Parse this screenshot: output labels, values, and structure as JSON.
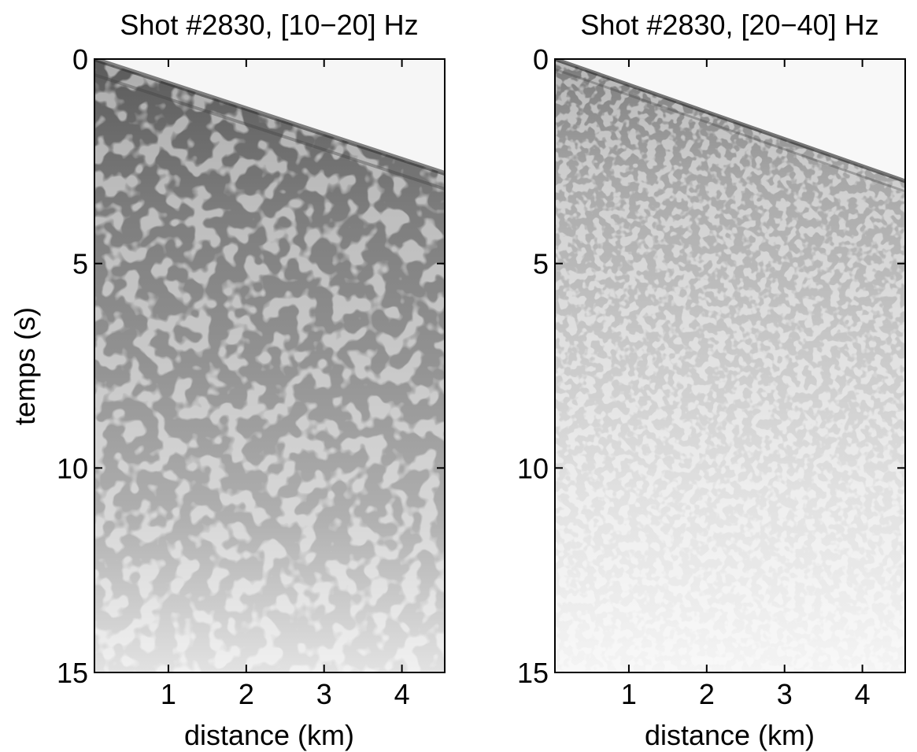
{
  "chart_data": [
    {
      "type": "heatmap",
      "title": "Shot #2830, [10−20] Hz",
      "xlabel": "distance (km)",
      "ylabel": "temps (s)",
      "xlim": [
        0.05,
        4.55
      ],
      "ylim": [
        0,
        15
      ],
      "y_reversed": true,
      "xticks": [
        1,
        2,
        3,
        4
      ],
      "yticks": [
        0,
        5,
        10,
        15
      ],
      "colormap": "grayscale",
      "first_arrival": {
        "distance_km": [
          0.05,
          4.55
        ],
        "time_s": [
          0.0,
          2.8
        ]
      },
      "energy_profile": "dark, dense coda decaying slowly to about 15 s"
    },
    {
      "type": "heatmap",
      "title": "Shot #2830, [20−40] Hz",
      "xlabel": "distance (km)",
      "ylabel": "",
      "xlim": [
        0.05,
        4.55
      ],
      "ylim": [
        0,
        15
      ],
      "y_reversed": true,
      "xticks": [
        1,
        2,
        3,
        4
      ],
      "yticks": [
        0,
        5,
        10,
        15
      ],
      "colormap": "grayscale",
      "first_arrival": {
        "distance_km": [
          0.05,
          4.55
        ],
        "time_s": [
          0.0,
          3.0
        ]
      },
      "energy_profile": "lighter coda decaying faster, near background after about 8 s"
    }
  ]
}
